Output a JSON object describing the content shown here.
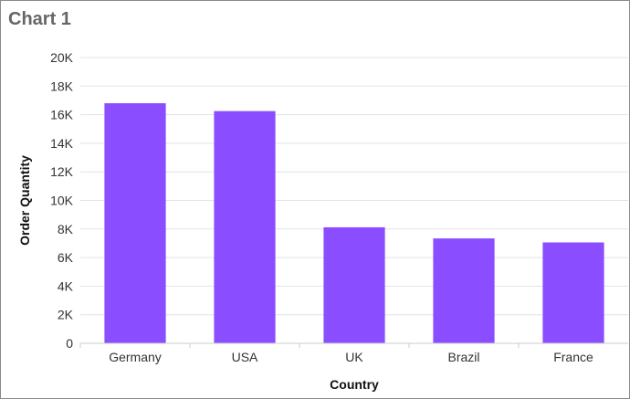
{
  "chart_data": {
    "type": "bar",
    "title": "Chart 1",
    "xlabel": "Country",
    "ylabel": "Order Quantity",
    "categories": [
      "Germany",
      "USA",
      "UK",
      "Brazil",
      "France"
    ],
    "values": [
      16800,
      16250,
      8120,
      7340,
      7060
    ],
    "ylim": [
      0,
      20000
    ],
    "yticks": [
      0,
      2000,
      4000,
      6000,
      8000,
      10000,
      12000,
      14000,
      16000,
      18000,
      20000
    ],
    "ytick_labels": [
      "0",
      "2K",
      "4K",
      "6K",
      "8K",
      "10K",
      "12K",
      "14K",
      "16K",
      "18K",
      "20K"
    ],
    "grid": true,
    "bar_color": "#8a4dff",
    "grid_color": "#e3e3e3"
  }
}
